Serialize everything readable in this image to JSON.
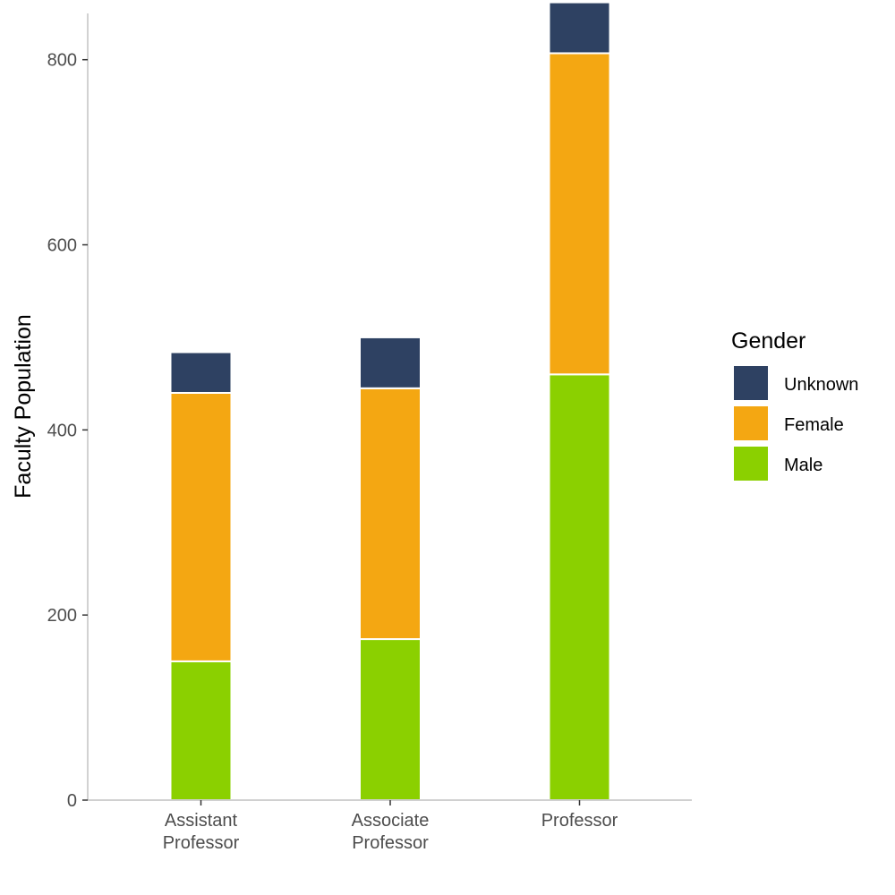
{
  "chart_data": {
    "type": "bar",
    "stacked": true,
    "title": "",
    "xlabel": "",
    "ylabel": "Faculty Population",
    "ylim": [
      0,
      850
    ],
    "yticks": [
      0,
      200,
      400,
      600,
      800
    ],
    "grid": false,
    "categories": [
      [
        "Assistant",
        "Professor"
      ],
      [
        "Associate",
        "Professor"
      ],
      [
        "Professor"
      ]
    ],
    "series": [
      {
        "name": "Male",
        "color": "#8bd000",
        "values": [
          150,
          174,
          460
        ]
      },
      {
        "name": "Female",
        "color": "#f4a712",
        "values": [
          290,
          271,
          347
        ]
      },
      {
        "name": "Unknown",
        "color": "#2e4162",
        "values": [
          44,
          55,
          55
        ]
      }
    ],
    "legend": {
      "title": "Gender",
      "position": "right",
      "order": [
        "Unknown",
        "Female",
        "Male"
      ]
    }
  }
}
